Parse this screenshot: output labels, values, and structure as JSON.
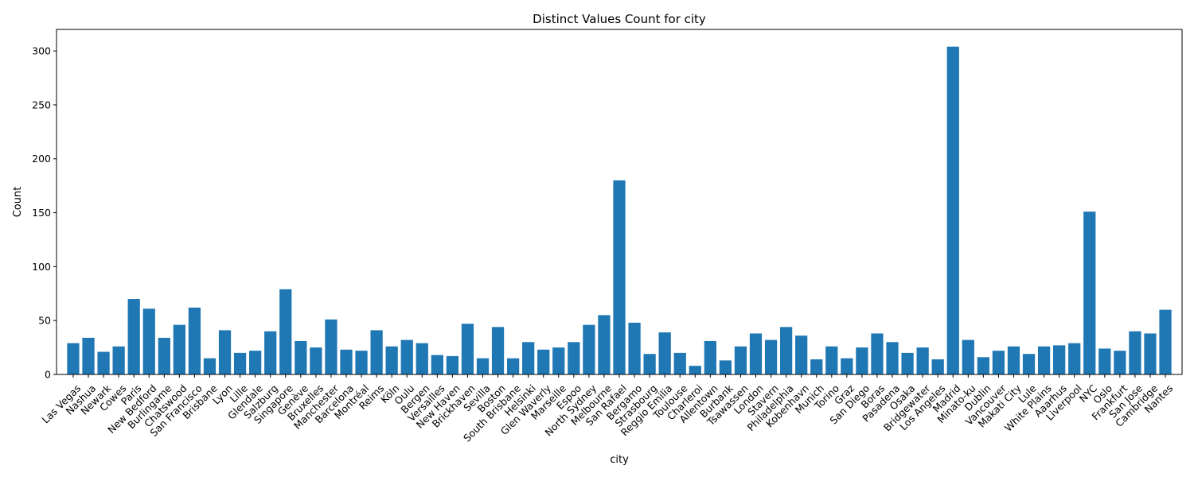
{
  "chart_data": {
    "type": "bar",
    "title": "Distinct Values Count for city",
    "xlabel": "city",
    "ylabel": "Count",
    "ylim": [
      0,
      320
    ],
    "yticks": [
      0,
      50,
      100,
      150,
      200,
      250,
      300
    ],
    "grid": false,
    "bar_color": "#1f77b4",
    "categories": [
      "Las Vegas",
      "Nashua",
      "Newark",
      "Cowes",
      "Paris",
      "New Bedford",
      "Burlingame",
      "Chatswood",
      "San Francisco",
      "Brisbane",
      "Lyon",
      "Lille",
      "Glendale",
      "Salzburg",
      "Singapore",
      "Genève",
      "Bruxelles",
      "Manchester",
      "Barcelona",
      "Montréal",
      "Reims",
      "Köln",
      "Oulu",
      "Bergen",
      "Versailles",
      "New Haven",
      "Brickhaven",
      "Sevilla",
      "Boston",
      "South Brisbane",
      "Helsinki",
      "Glen Waverly",
      "Marseille",
      "Espoo",
      "North Sydney",
      "Melbourne",
      "San Rafael",
      "Bergamo",
      "Strasbourg",
      "Reggio Emilia",
      "Toulouse",
      "Charleroi",
      "Allentown",
      "Burbank",
      "Tsawassen",
      "London",
      "Stavern",
      "Philadelphia",
      "Kobenhavn",
      "Munich",
      "Torino",
      "Graz",
      "San Diego",
      "Boras",
      "Pasadena",
      "Osaka",
      "Bridgewater",
      "Los Angeles",
      "Madrid",
      "Minato-ku",
      "Dublin",
      "Vancouver",
      "Makati City",
      "Lule",
      "White Plains",
      "Aaarhus",
      "Liverpool",
      "NYC",
      "Oslo",
      "Frankfurt",
      "San Jose",
      "Cambridge",
      "Nantes"
    ],
    "values": [
      29,
      34,
      21,
      26,
      70,
      61,
      34,
      46,
      62,
      15,
      41,
      20,
      22,
      40,
      79,
      31,
      25,
      51,
      23,
      22,
      41,
      26,
      32,
      29,
      18,
      17,
      47,
      15,
      44,
      15,
      30,
      23,
      25,
      30,
      46,
      55,
      180,
      48,
      19,
      39,
      20,
      8,
      31,
      13,
      26,
      38,
      32,
      44,
      36,
      14,
      26,
      15,
      25,
      38,
      30,
      20,
      25,
      14,
      304,
      32,
      16,
      22,
      26,
      19,
      26,
      27,
      29,
      151,
      24,
      22,
      40,
      38,
      60
    ]
  }
}
